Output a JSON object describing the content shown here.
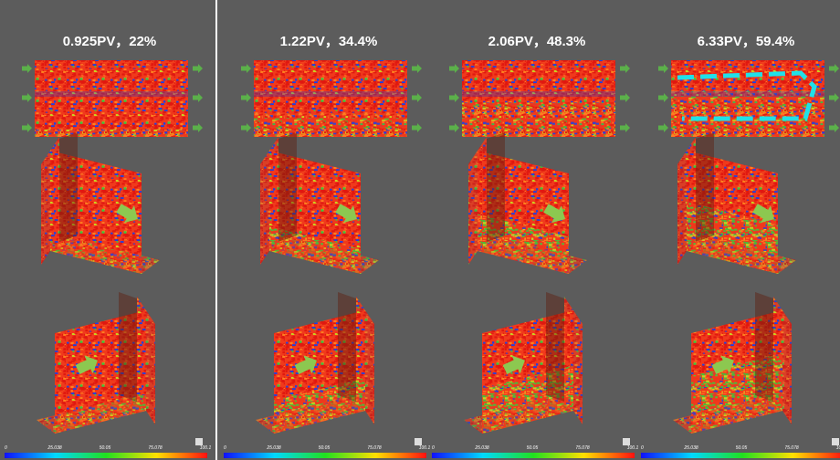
{
  "panels": [
    {
      "title": "0.925PV，22%",
      "colorbar_labels": [
        "0",
        "25.038",
        "50.05",
        "75.078",
        "100.1"
      ]
    },
    {
      "title": "1.22PV，34.4%",
      "colorbar_labels": [
        "0",
        "25.038",
        "50.05",
        "75.078",
        "100.1"
      ]
    },
    {
      "title": "2.06PV，48.3%",
      "colorbar_labels": [
        "0",
        "25.038",
        "50.05",
        "75.078",
        "100.1"
      ]
    },
    {
      "title": "6.33PV，59.4%",
      "colorbar_labels": [
        "0",
        "25.038",
        "50.05",
        "75.078",
        "100.1"
      ]
    }
  ]
}
